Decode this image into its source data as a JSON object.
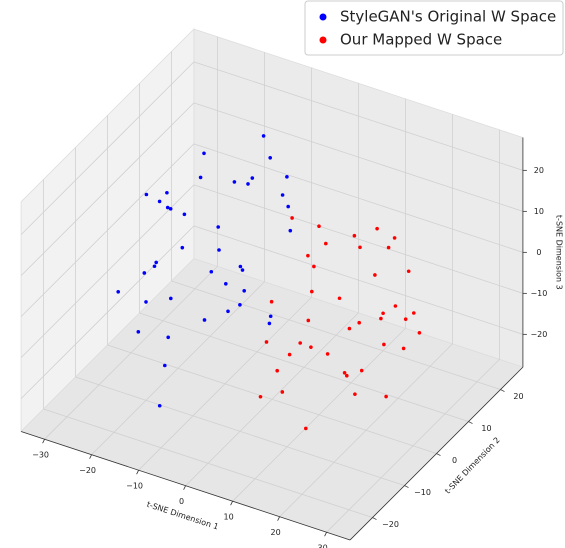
{
  "chart_data": {
    "type": "scatter3d",
    "xlabel": "t-SNE Dimension 1",
    "ylabel": "t-SNE Dimension 2",
    "zlabel": "t-SNE Dimension 3",
    "xlim": [
      -35,
      35
    ],
    "ylim": [
      -27,
      27
    ],
    "zlim": [
      -28,
      28
    ],
    "xticks": [
      {
        "value": -30,
        "label": "−30"
      },
      {
        "value": -20,
        "label": "−20"
      },
      {
        "value": -10,
        "label": "−10"
      },
      0,
      10,
      20,
      30
    ],
    "yticks": [
      {
        "value": -20,
        "label": "−20"
      },
      {
        "value": -10,
        "label": "−10"
      },
      0,
      10,
      20
    ],
    "zticks": [
      {
        "value": -20,
        "label": "−20"
      },
      {
        "value": -10,
        "label": "−10"
      },
      0,
      10,
      20
    ],
    "grid": true,
    "legend": "upper right",
    "series": [
      {
        "name": "StyleGAN's Original W Space",
        "color": "#0000ff",
        "x": [
          -14,
          -22,
          -8,
          -28,
          -5,
          -18,
          -12,
          -25,
          -2,
          -16,
          -20,
          -10,
          -30,
          -6,
          -15,
          -24,
          -9,
          -19,
          -13,
          -27,
          -4,
          -17,
          -11,
          -23,
          -7,
          -21,
          -14,
          -26,
          -3,
          -12,
          -18,
          -8,
          -29,
          -15,
          -20,
          -10,
          -24,
          -6,
          -16,
          -13
        ],
        "y": [
          4,
          10,
          -2,
          6,
          12,
          -6,
          15,
          0,
          8,
          -10,
          2,
          18,
          -4,
          -8,
          12,
          14,
          4,
          -12,
          -2,
          8,
          -4,
          6,
          10,
          -8,
          16,
          -2,
          20,
          2,
          4,
          -14,
          12,
          0,
          10,
          -6,
          -10,
          6,
          -4,
          8,
          16,
          -16
        ],
        "z": [
          0,
          10,
          -8,
          5,
          15,
          -15,
          20,
          -5,
          12,
          -18,
          8,
          4,
          -10,
          18,
          -20,
          12,
          -3,
          5,
          -12,
          2,
          6,
          -8,
          14,
          -14,
          -2,
          16,
          10,
          -6,
          -12,
          3,
          -16,
          22,
          0,
          8,
          -4,
          -10,
          16,
          -18,
          6,
          -22
        ]
      },
      {
        "name": "Our Mapped W Space",
        "color": "#ff0000",
        "x": [
          13,
          20,
          6,
          25,
          9,
          16,
          28,
          3,
          18,
          11,
          22,
          7,
          15,
          26,
          10,
          19,
          4,
          23,
          14,
          8,
          21,
          12,
          27,
          5,
          17,
          24,
          9,
          15,
          20,
          11,
          13,
          30,
          6,
          18,
          22,
          10,
          16,
          25,
          7,
          14
        ],
        "y": [
          2,
          -6,
          8,
          -2,
          -10,
          4,
          0,
          -8,
          10,
          -4,
          6,
          -12,
          12,
          -14,
          0,
          -2,
          -6,
          8,
          -10,
          14,
          2,
          -16,
          -4,
          4,
          10,
          -8,
          -2,
          6,
          -12,
          16,
          -6,
          2,
          0,
          -14,
          12,
          8,
          -18,
          6,
          -4,
          18
        ],
        "z": [
          0,
          -10,
          6,
          4,
          -15,
          12,
          -5,
          -20,
          8,
          -8,
          15,
          -2,
          -12,
          10,
          18,
          -18,
          2,
          -6,
          -22,
          4,
          20,
          -4,
          -14,
          -10,
          -16,
          6,
          12,
          -20,
          0,
          -6,
          14,
          -2,
          -12,
          16,
          -8,
          -24,
          3,
          8,
          22,
          -14
        ]
      }
    ]
  }
}
